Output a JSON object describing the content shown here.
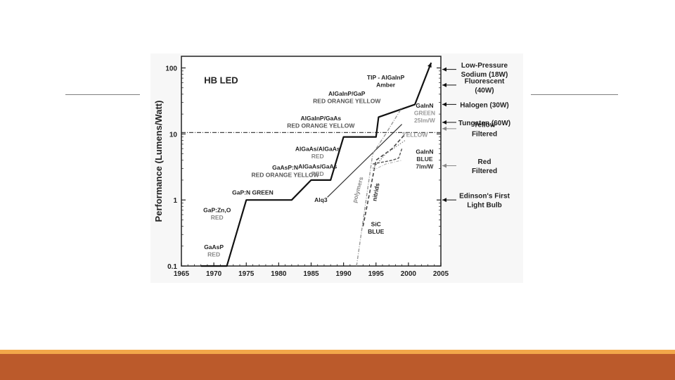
{
  "slide": {
    "accent_colors": {
      "stripe": "#f2a74a",
      "bar": "#bb5a2b",
      "rule": "#7f7f7f"
    }
  },
  "chart_data": {
    "type": "line",
    "title": "HB LED",
    "ylabel": "Performance (Lumens/Watt)",
    "xlabel": "",
    "xlim": [
      1965,
      2005
    ],
    "ylim": [
      0.1,
      150
    ],
    "y_scale": "log",
    "x_ticks": [
      1965,
      1970,
      1975,
      1980,
      1985,
      1990,
      1995,
      2000,
      2005
    ],
    "y_ticks": [
      {
        "value": 0.1,
        "label": "0.1"
      },
      {
        "value": 1,
        "label": "1"
      },
      {
        "value": 10,
        "label": "10"
      },
      {
        "value": 100,
        "label": "100"
      }
    ],
    "grid": false,
    "series": [
      {
        "style": "solid-thick",
        "points": [
          [
            1968,
            0.1
          ],
          [
            1972,
            0.1
          ],
          [
            1975,
            1
          ],
          [
            1982,
            1
          ],
          [
            1985,
            2
          ],
          [
            1988,
            2
          ],
          [
            1990,
            9
          ],
          [
            1995,
            9
          ],
          [
            1995.4,
            18
          ],
          [
            2001,
            28
          ],
          [
            2003.5,
            120
          ]
        ]
      },
      {
        "name": "Alq3",
        "style": "solid-thin",
        "points": [
          [
            1987.5,
            1.1
          ],
          [
            1999,
            14
          ]
        ]
      },
      {
        "name": "polymers",
        "style": "dashdot",
        "points": [
          [
            1992,
            0.1
          ],
          [
            1994.5,
            5
          ],
          [
            1996.5,
            10
          ],
          [
            1999,
            25
          ]
        ]
      },
      {
        "name": "nitrids",
        "style": "dashed",
        "points": [
          [
            1993,
            0.4
          ],
          [
            1995,
            4
          ],
          [
            1997.5,
            6
          ],
          [
            1999.5,
            10
          ]
        ]
      },
      {
        "name": "SiC BLUE",
        "style": "dotted",
        "points": [
          [
            1994.5,
            3
          ],
          [
            1996.5,
            5
          ],
          [
            1999.5,
            8
          ]
        ]
      },
      {
        "name": "GaInN BLUE",
        "style": "dash-dark",
        "points": [
          [
            1994.5,
            3.5
          ],
          [
            1997.5,
            4
          ],
          [
            1998.5,
            4.3
          ],
          [
            1999,
            6
          ]
        ]
      },
      {
        "style": "dashdot-thin",
        "points": [
          [
            1994.5,
            2.8
          ],
          [
            1996.5,
            3.5
          ],
          [
            1999,
            4
          ]
        ]
      }
    ],
    "reference_line": {
      "value": 10.5
    },
    "annotations": [
      {
        "lines": [
          "GaAsP",
          "RED"
        ],
        "colors": [
          "#222",
          "#888"
        ],
        "x": 1970,
        "y": 0.18
      },
      {
        "lines": [
          "GaP:Zn,O",
          "RED"
        ],
        "colors": [
          "#222",
          "#888"
        ],
        "x": 1970.5,
        "y": 0.65
      },
      {
        "lines": [
          "GaP:N GREEN"
        ],
        "colors": [
          "#222"
        ],
        "x": 1976,
        "y": 1.2
      },
      {
        "lines": [
          "GaAsP:N",
          "RED ORANGE YELLOW"
        ],
        "colors": [
          "#222",
          "#555"
        ],
        "x": 1981,
        "y": 2.9
      },
      {
        "lines": [
          "AlGaAs/GaAs",
          "RED"
        ],
        "colors": [
          "#222",
          "#888"
        ],
        "x": 1986,
        "y": 3.0
      },
      {
        "lines": [
          "AlGaAs/AlGaAs",
          "RED"
        ],
        "colors": [
          "#222",
          "#888"
        ],
        "x": 1986,
        "y": 5.5
      },
      {
        "lines": [
          "AlGaInP/GaAs",
          "RED ORANGE YELLOW"
        ],
        "colors": [
          "#222",
          "#555"
        ],
        "x": 1986.5,
        "y": 16
      },
      {
        "lines": [
          "AlGaInP/GaP",
          "RED ORANGE YELLOW"
        ],
        "colors": [
          "#222",
          "#555"
        ],
        "x": 1990.5,
        "y": 38
      },
      {
        "lines": [
          "TIP - AlGaInP",
          "Amber"
        ],
        "colors": [
          "#222",
          "#222"
        ],
        "x": 1996.5,
        "y": 67
      },
      {
        "lines": [
          "GaInN",
          "GREEN",
          "25lm/W"
        ],
        "colors": [
          "#222",
          "#999",
          "#999"
        ],
        "x": 2002.5,
        "y": 25
      },
      {
        "lines": [
          "YELLOW"
        ],
        "colors": [
          "#999"
        ],
        "x": 2001,
        "y": 9
      },
      {
        "lines": [
          "GaInN",
          "BLUE",
          "7lm/W"
        ],
        "colors": [
          "#222",
          "#333",
          "#333"
        ],
        "x": 2002.5,
        "y": 5
      },
      {
        "lines": [
          "Alq3"
        ],
        "colors": [
          "#222"
        ],
        "x": 1986.5,
        "y": 0.93
      },
      {
        "lines": [
          "polymers"
        ],
        "colors": [
          "#888"
        ],
        "x": 1992.5,
        "y": 1.4,
        "rotate": -75
      },
      {
        "lines": [
          "nitrids"
        ],
        "colors": [
          "#222"
        ],
        "x": 1995.3,
        "y": 1.3,
        "rotate": -80
      },
      {
        "lines": [
          "SiC",
          "BLUE"
        ],
        "colors": [
          "#222",
          "#222"
        ],
        "x": 1995,
        "y": 0.4
      }
    ],
    "right_labels": [
      {
        "lines": [
          "Low-Pressure",
          "Sodium (18W)"
        ],
        "value": 95,
        "arrow_style": "dark"
      },
      {
        "lines": [
          "Fluorescent",
          "(40W)"
        ],
        "value": 55,
        "arrow_style": "dark"
      },
      {
        "lines": [
          "Halogen (30W)"
        ],
        "value": 28,
        "arrow_style": "dark"
      },
      {
        "lines": [
          "Tungsten (60W)"
        ],
        "value": 15,
        "arrow_style": "dark"
      },
      {
        "lines": [
          "Yellow",
          "Filtered"
        ],
        "value": 12,
        "arrow_style": "light"
      },
      {
        "lines": [
          "Red",
          "Filtered"
        ],
        "value": 3.3,
        "arrow_style": "light"
      },
      {
        "lines": [
          "Edinson's First",
          "Light Bulb"
        ],
        "value": 1,
        "arrow_style": "dark"
      }
    ]
  }
}
